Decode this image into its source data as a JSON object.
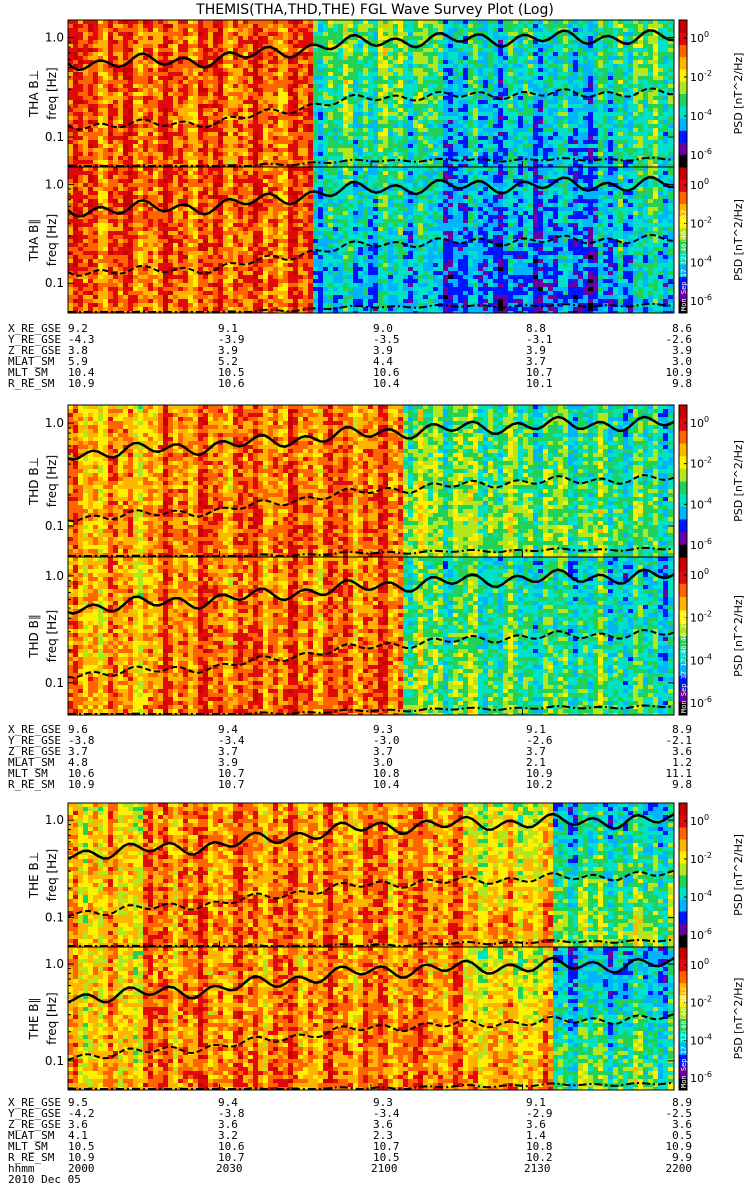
{
  "title": "THEMIS(THA,THD,THE) FGL Wave Survey Plot (Log)",
  "yaxis_label": "freq [Hz]",
  "colorbar": {
    "ticks": [
      "10^0",
      "10^-2",
      "10^-4",
      "10^-6"
    ],
    "label": "PSD [nT^2/Hz]",
    "colors": [
      "#000000",
      "#6a00a0",
      "#0015ff",
      "#00b4ff",
      "#00e2c8",
      "#20d25a",
      "#b4e61e",
      "#fff000",
      "#ffb400",
      "#ff6400",
      "#e10a0a",
      "#c80000"
    ]
  },
  "stamp_text": "Mon Sep 17 12:46:46 2012",
  "date_label": "2010 Dec 05",
  "time_row_label": "hhmm",
  "time_ticks": [
    "2000",
    "2030",
    "2100",
    "2130",
    "2200"
  ],
  "chart_data": [
    {
      "type": "heatmap",
      "probe": "THA",
      "panels": [
        {
          "label": "THA B⊥",
          "yticks": [
            "1.0",
            "0.1"
          ],
          "ylim": [
            0.05,
            1.5
          ],
          "yscale": "log"
        },
        {
          "label": "THA B∥",
          "yticks": [
            "1.0",
            "0.1"
          ],
          "ylim": [
            0.05,
            1.5
          ],
          "yscale": "log"
        }
      ],
      "lines": {
        "solid_gyro_freq": {
          "x": [
            "2000",
            "2030",
            "2100",
            "2130",
            "2200"
          ],
          "y": [
            0.55,
            0.6,
            0.92,
            0.98,
            1.0
          ]
        },
        "dashed_half_gyro": {
          "x": [
            "2000",
            "2030",
            "2100",
            "2130",
            "2200"
          ],
          "y": [
            0.13,
            0.14,
            0.25,
            0.27,
            0.28
          ]
        },
        "dashdot_low": {
          "x": [
            "2000",
            "2030",
            "2100",
            "2130",
            "2200"
          ],
          "y": [
            0.05,
            0.05,
            0.058,
            0.059,
            0.06
          ]
        }
      },
      "ephemeris": {
        "rows": [
          {
            "label": "X_RE_GSE",
            "values": [
              "9.2",
              "9.1",
              "9.0",
              "8.8",
              "8.6"
            ]
          },
          {
            "label": "Y_RE_GSE",
            "values": [
              "-4.3",
              "-3.9",
              "-3.5",
              "-3.1",
              "-2.6"
            ]
          },
          {
            "label": "Z_RE_GSE",
            "values": [
              "3.8",
              "3.9",
              "3.9",
              "3.9",
              "3.9"
            ]
          },
          {
            "label": "MLAT_SM",
            "values": [
              "5.9",
              "5.2",
              "4.4",
              "3.7",
              "3.0"
            ]
          },
          {
            "label": "MLT_SM",
            "values": [
              "10.4",
              "10.5",
              "10.6",
              "10.7",
              "10.9"
            ]
          },
          {
            "label": "R_RE_SM",
            "values": [
              "10.9",
              "10.6",
              "10.4",
              "10.1",
              "9.8"
            ]
          }
        ]
      }
    },
    {
      "type": "heatmap",
      "probe": "THD",
      "panels": [
        {
          "label": "THD B⊥",
          "yticks": [
            "1.0",
            "0.1"
          ],
          "ylim": [
            0.05,
            1.5
          ],
          "yscale": "log"
        },
        {
          "label": "THD B∥",
          "yticks": [
            "1.0",
            "0.1"
          ],
          "ylim": [
            0.05,
            1.5
          ],
          "yscale": "log"
        }
      ],
      "lines": {
        "solid_gyro_freq": {
          "x": [
            "2000",
            "2030",
            "2100",
            "2130",
            "2200"
          ],
          "y": [
            0.5,
            0.6,
            0.8,
            0.95,
            1.0
          ]
        },
        "dashed_half_gyro": {
          "x": [
            "2000",
            "2030",
            "2100",
            "2130",
            "2200"
          ],
          "y": [
            0.12,
            0.14,
            0.22,
            0.27,
            0.29
          ]
        },
        "dashdot_low": {
          "x": [
            "2000",
            "2030",
            "2100",
            "2130",
            "2200"
          ],
          "y": [
            0.05,
            0.05,
            0.055,
            0.058,
            0.06
          ]
        }
      },
      "ephemeris": {
        "rows": [
          {
            "label": "X_RE_GSE",
            "values": [
              "9.6",
              "9.4",
              "9.3",
              "9.1",
              "8.9"
            ]
          },
          {
            "label": "Y_RE_GSE",
            "values": [
              "-3.8",
              "-3.4",
              "-3.0",
              "-2.6",
              "-2.1"
            ]
          },
          {
            "label": "Z_RE_GSE",
            "values": [
              "3.7",
              "3.7",
              "3.7",
              "3.7",
              "3.6"
            ]
          },
          {
            "label": "MLAT_SM",
            "values": [
              "4.8",
              "3.9",
              "3.0",
              "2.1",
              "1.2"
            ]
          },
          {
            "label": "MLT_SM",
            "values": [
              "10.6",
              "10.7",
              "10.8",
              "10.9",
              "11.1"
            ]
          },
          {
            "label": "R_RE_SM",
            "values": [
              "10.9",
              "10.7",
              "10.4",
              "10.2",
              "9.8"
            ]
          }
        ]
      }
    },
    {
      "type": "heatmap",
      "probe": "THE",
      "panels": [
        {
          "label": "THE B⊥",
          "yticks": [
            "1.0",
            "0.1"
          ],
          "ylim": [
            0.05,
            1.5
          ],
          "yscale": "log"
        },
        {
          "label": "THE B∥",
          "yticks": [
            "1.0",
            "0.1"
          ],
          "ylim": [
            0.05,
            1.5
          ],
          "yscale": "log"
        }
      ],
      "lines": {
        "solid_gyro_freq": {
          "x": [
            "2000",
            "2030",
            "2100",
            "2130",
            "2200"
          ],
          "y": [
            0.45,
            0.55,
            0.85,
            0.95,
            1.0
          ]
        },
        "dashed_half_gyro": {
          "x": [
            "2000",
            "2030",
            "2100",
            "2130",
            "2200"
          ],
          "y": [
            0.11,
            0.14,
            0.22,
            0.25,
            0.28
          ]
        },
        "dashdot_low": {
          "x": [
            "2000",
            "2030",
            "2100",
            "2130",
            "2200"
          ],
          "y": [
            0.05,
            0.05,
            0.052,
            0.056,
            0.058
          ]
        }
      },
      "ephemeris": {
        "rows": [
          {
            "label": "X_RE_GSE",
            "values": [
              "9.5",
              "9.4",
              "9.3",
              "9.1",
              "8.9"
            ]
          },
          {
            "label": "Y_RE_GSE",
            "values": [
              "-4.2",
              "-3.8",
              "-3.4",
              "-2.9",
              "-2.5"
            ]
          },
          {
            "label": "Z_RE_GSE",
            "values": [
              "3.6",
              "3.6",
              "3.6",
              "3.6",
              "3.6"
            ]
          },
          {
            "label": "MLAT_SM",
            "values": [
              "4.1",
              "3.2",
              "2.3",
              "1.4",
              "0.5"
            ]
          },
          {
            "label": "MLT_SM",
            "values": [
              "10.5",
              "10.6",
              "10.7",
              "10.8",
              "10.9"
            ]
          },
          {
            "label": "R_RE_SM",
            "values": [
              "10.9",
              "10.7",
              "10.5",
              "10.2",
              "9.9"
            ]
          }
        ]
      }
    }
  ]
}
